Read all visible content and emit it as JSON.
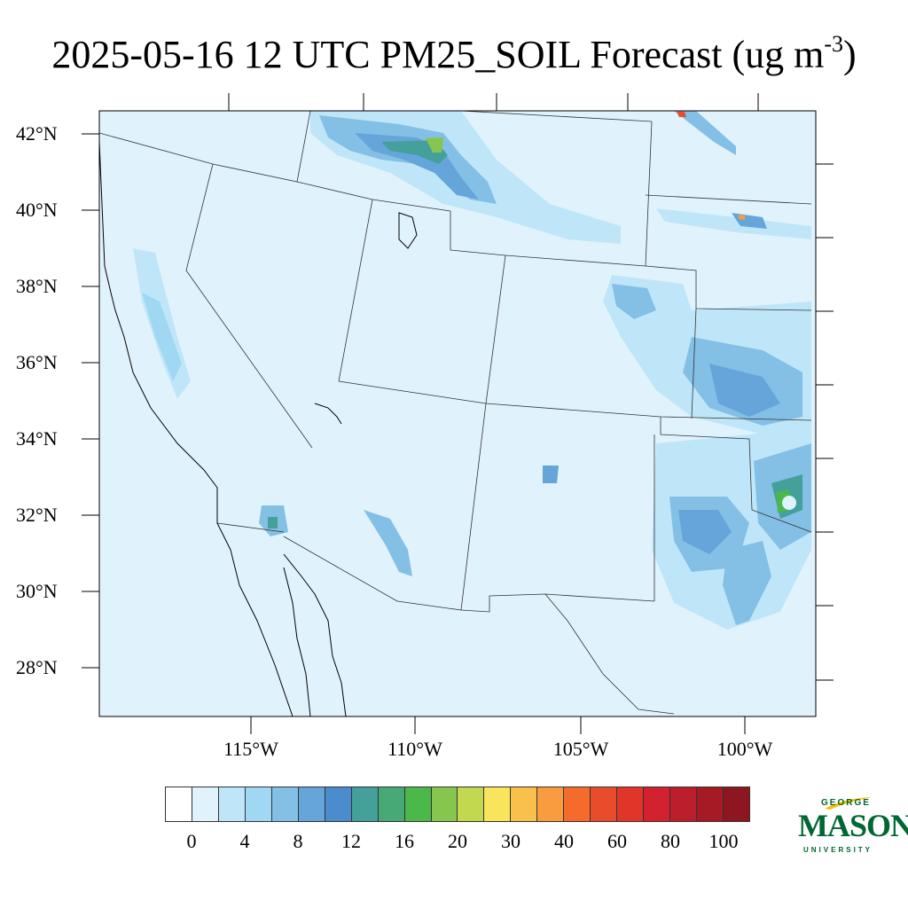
{
  "title": {
    "main": "2025-05-16 12 UTC PM25_SOIL Forecast (ug m",
    "sup": "-3",
    "close": ")"
  },
  "lat_labels": [
    "42°N",
    "40°N",
    "38°N",
    "36°N",
    "34°N",
    "32°N",
    "30°N",
    "28°N"
  ],
  "lon_labels": [
    "115°W",
    "110°W",
    "105°W",
    "100°W"
  ],
  "colorbar": {
    "colors": [
      "#ffffff",
      "#e0f3fc",
      "#bfe6f8",
      "#a0d8f4",
      "#84bfe6",
      "#65a5d9",
      "#4b8ccc",
      "#43a09a",
      "#47a975",
      "#4ab94a",
      "#86c64f",
      "#c2d84f",
      "#f8e55b",
      "#f9c14c",
      "#f89c3f",
      "#f46b2c",
      "#e94c2a",
      "#e03528",
      "#d32130",
      "#bd1e2b",
      "#a51a25",
      "#8e1620"
    ],
    "tick_labels": [
      "0",
      "4",
      "8",
      "12",
      "16",
      "20",
      "30",
      "40",
      "60",
      "80",
      "100"
    ]
  },
  "logo": {
    "line1": "GEORGE",
    "line2": "MASON",
    "line3": "UNIVERSITY",
    "color": "#006633"
  },
  "field_colors": {
    "background": "#e0f3fc",
    "light": "#bfe6f8",
    "mid": "#a0d8f4",
    "blue": "#84bfe6",
    "dark": "#65a5d9",
    "darker": "#4b8ccc",
    "teal": "#43a09a",
    "green": "#4ab94a",
    "lime": "#86c64f",
    "yellow": "#f8e55b",
    "orange": "#f89c3f",
    "red": "#e94c2a"
  }
}
